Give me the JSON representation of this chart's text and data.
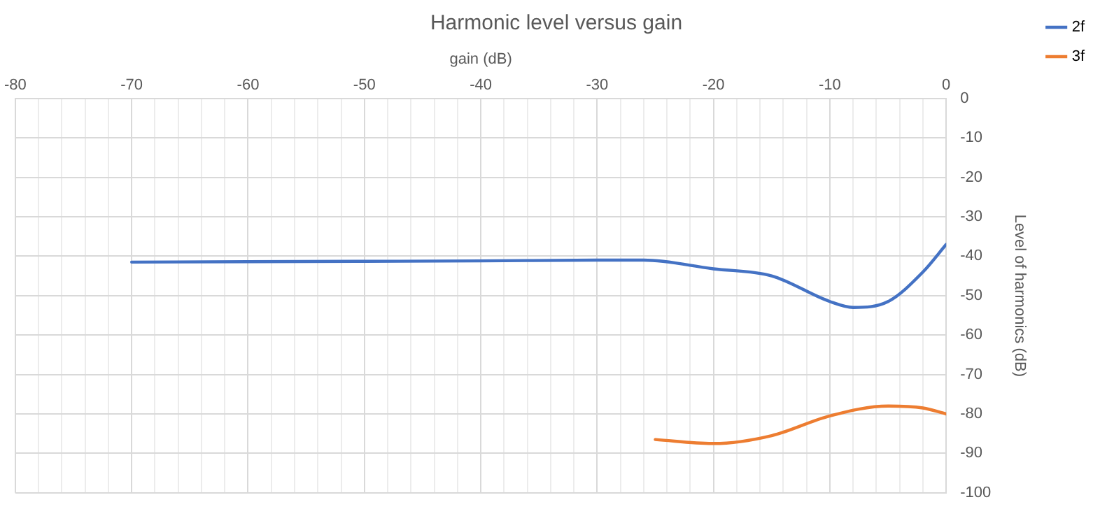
{
  "chart_data": {
    "type": "line",
    "title": "Harmonic level versus gain",
    "xlabel": "gain (dB)",
    "ylabel": "Level of harmonics (dB)",
    "xlim": [
      -80,
      0
    ],
    "xticks": [
      -80,
      {
        "value": -78,
        "label": null
      },
      {
        "value": -76,
        "label": null
      },
      {
        "value": -74,
        "label": null
      },
      {
        "value": -72,
        "label": null
      },
      -70,
      {
        "value": -68,
        "label": null
      },
      {
        "value": -66,
        "label": null
      },
      {
        "value": -64,
        "label": null
      },
      {
        "value": -62,
        "label": null
      },
      -60,
      {
        "value": -58,
        "label": null
      },
      {
        "value": -56,
        "label": null
      },
      {
        "value": -54,
        "label": null
      },
      {
        "value": -52,
        "label": null
      },
      -50,
      {
        "value": -48,
        "label": null
      },
      {
        "value": -46,
        "label": null
      },
      {
        "value": -44,
        "label": null
      },
      {
        "value": -42,
        "label": null
      },
      -40,
      {
        "value": -38,
        "label": null
      },
      {
        "value": -36,
        "label": null
      },
      {
        "value": -34,
        "label": null
      },
      {
        "value": -32,
        "label": null
      },
      -30,
      {
        "value": -28,
        "label": null
      },
      {
        "value": -26,
        "label": null
      },
      {
        "value": -24,
        "label": null
      },
      {
        "value": -22,
        "label": null
      },
      -20,
      {
        "value": -18,
        "label": null
      },
      {
        "value": -16,
        "label": null
      },
      {
        "value": -14,
        "label": null
      },
      {
        "value": -12,
        "label": null
      },
      -10,
      {
        "value": -8,
        "label": null
      },
      {
        "value": -6,
        "label": null
      },
      {
        "value": -4,
        "label": null
      },
      {
        "value": -2,
        "label": null
      },
      0
    ],
    "ylim": [
      -100,
      0
    ],
    "yticks": [
      0,
      -10,
      -20,
      -30,
      -40,
      -50,
      -60,
      -70,
      -80,
      -90,
      -100
    ],
    "grid": true,
    "legend": "right",
    "marker": "none",
    "line_style": "solid",
    "series": [
      {
        "name": "2f",
        "color": "#4472c4",
        "x": [
          -70,
          -60,
          -50,
          -40,
          -30,
          -26,
          -20,
          -15,
          -10,
          -8,
          -5,
          -2,
          0
        ],
        "values": [
          -41.5,
          -41.4,
          -41.3,
          -41.2,
          -41,
          -41,
          -43.2,
          -45,
          -51.5,
          -53,
          -51.5,
          -44,
          -37
        ]
      },
      {
        "name": "3f",
        "color": "#ed7d31",
        "x": [
          -25,
          -20,
          -15,
          -10,
          -5,
          -2,
          0
        ],
        "values": [
          -86.5,
          -87.5,
          -85.5,
          -80.5,
          -78,
          -78.5,
          -80
        ]
      }
    ]
  }
}
